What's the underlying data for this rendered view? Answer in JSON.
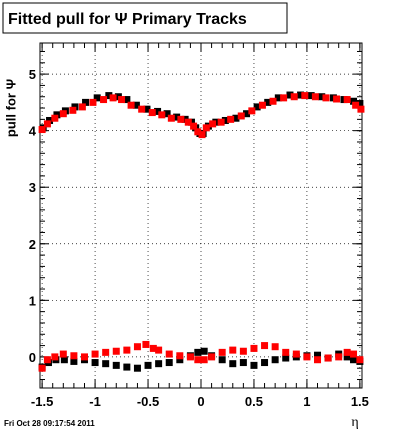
{
  "title": "Fitted pull for  Ψ   Primary Tracks",
  "timestamp": "Fri Oct 28 09:17:54 2011",
  "colors": {
    "black_series": "#000000",
    "red_series": "#ff0000",
    "frame": "#000000"
  },
  "chart_data": {
    "type": "scatter",
    "title": "Fitted pull for  Ψ   Primary Tracks",
    "xlabel": "η",
    "ylabel": "pull for Ψ",
    "xlim": [
      -1.52,
      1.52
    ],
    "ylim": [
      -0.55,
      5.55
    ],
    "xticks": [
      -1.5,
      -1,
      -0.5,
      0,
      0.5,
      1,
      1.5
    ],
    "xtick_labels": [
      "-1.5",
      "-1",
      "-0.5",
      "0",
      "0.5",
      "1",
      "1.5"
    ],
    "yticks": [
      0,
      1,
      2,
      3,
      4,
      5
    ],
    "ytick_labels": [
      "0",
      "1",
      "2",
      "3",
      "4",
      "5"
    ],
    "grid": true,
    "marker": "square",
    "series": [
      {
        "color": "#000000",
        "x": [
          -1.49,
          -1.43,
          -1.36,
          -1.28,
          -1.19,
          -1.09,
          -0.98,
          -0.87,
          -0.78,
          -0.7,
          -0.61,
          -0.51,
          -0.41,
          -0.32,
          -0.23,
          -0.15,
          -0.09,
          -0.05,
          -0.01,
          0.02,
          0.07,
          0.14,
          0.23,
          0.33,
          0.43,
          0.53,
          0.63,
          0.73,
          0.84,
          0.94,
          1.04,
          1.14,
          1.25,
          1.35,
          1.44,
          1.5
        ],
        "y": [
          4.05,
          4.18,
          4.28,
          4.35,
          4.42,
          4.5,
          4.58,
          4.62,
          4.6,
          4.55,
          4.45,
          4.38,
          4.34,
          4.3,
          4.24,
          4.2,
          4.15,
          4.05,
          3.95,
          3.95,
          4.08,
          4.15,
          4.18,
          4.22,
          4.3,
          4.42,
          4.5,
          4.58,
          4.63,
          4.63,
          4.62,
          4.6,
          4.58,
          4.55,
          4.52,
          4.48
        ]
      },
      {
        "color": "#ff0000",
        "x": [
          -1.5,
          -1.45,
          -1.38,
          -1.3,
          -1.21,
          -1.12,
          -1.02,
          -0.92,
          -0.83,
          -0.75,
          -0.66,
          -0.56,
          -0.46,
          -0.37,
          -0.28,
          -0.19,
          -0.12,
          -0.07,
          -0.03,
          0.01,
          0.05,
          0.11,
          0.19,
          0.28,
          0.38,
          0.48,
          0.58,
          0.68,
          0.78,
          0.88,
          0.98,
          1.08,
          1.18,
          1.28,
          1.38,
          1.46,
          1.51
        ],
        "y": [
          4.02,
          4.12,
          4.22,
          4.3,
          4.36,
          4.42,
          4.5,
          4.55,
          4.58,
          4.55,
          4.45,
          4.38,
          4.32,
          4.28,
          4.22,
          4.2,
          4.15,
          4.08,
          3.98,
          3.93,
          4.05,
          4.12,
          4.15,
          4.2,
          4.26,
          4.35,
          4.45,
          4.52,
          4.58,
          4.6,
          4.62,
          4.6,
          4.58,
          4.56,
          4.55,
          4.45,
          4.38
        ]
      },
      {
        "color": "#000000",
        "x": [
          -1.5,
          -1.44,
          -1.37,
          -1.29,
          -1.2,
          -1.1,
          -1.0,
          -0.9,
          -0.8,
          -0.7,
          -0.6,
          -0.5,
          -0.4,
          -0.3,
          -0.2,
          -0.1,
          -0.03,
          0.03,
          0.1,
          0.2,
          0.3,
          0.4,
          0.5,
          0.6,
          0.7,
          0.8,
          0.9,
          1.0,
          1.1,
          1.2,
          1.3,
          1.38,
          1.44,
          1.5
        ],
        "y": [
          -0.18,
          -0.1,
          -0.05,
          -0.05,
          -0.08,
          -0.05,
          -0.1,
          -0.12,
          -0.15,
          -0.18,
          -0.2,
          -0.15,
          -0.12,
          -0.1,
          -0.05,
          0.02,
          0.08,
          0.1,
          0.02,
          -0.05,
          -0.12,
          -0.1,
          -0.15,
          -0.1,
          -0.05,
          -0.02,
          0.0,
          0.02,
          0.03,
          -0.02,
          0.05,
          0.0,
          -0.05,
          -0.08
        ]
      },
      {
        "color": "#ff0000",
        "x": [
          -1.5,
          -1.45,
          -1.38,
          -1.3,
          -1.2,
          -1.1,
          -1.0,
          -0.9,
          -0.8,
          -0.7,
          -0.6,
          -0.52,
          -0.45,
          -0.4,
          -0.3,
          -0.2,
          -0.1,
          -0.03,
          0.03,
          0.1,
          0.2,
          0.3,
          0.4,
          0.5,
          0.6,
          0.7,
          0.8,
          0.9,
          1.0,
          1.1,
          1.2,
          1.3,
          1.38,
          1.44,
          1.5
        ],
        "y": [
          -0.2,
          -0.05,
          0.0,
          0.05,
          0.02,
          0.0,
          0.05,
          0.08,
          0.1,
          0.12,
          0.18,
          0.22,
          0.15,
          0.12,
          0.05,
          0.02,
          0.0,
          -0.05,
          -0.05,
          0.0,
          0.08,
          0.12,
          0.1,
          0.15,
          0.2,
          0.18,
          0.08,
          0.05,
          0.0,
          -0.05,
          -0.02,
          0.0,
          0.08,
          0.05,
          -0.05
        ]
      }
    ]
  }
}
